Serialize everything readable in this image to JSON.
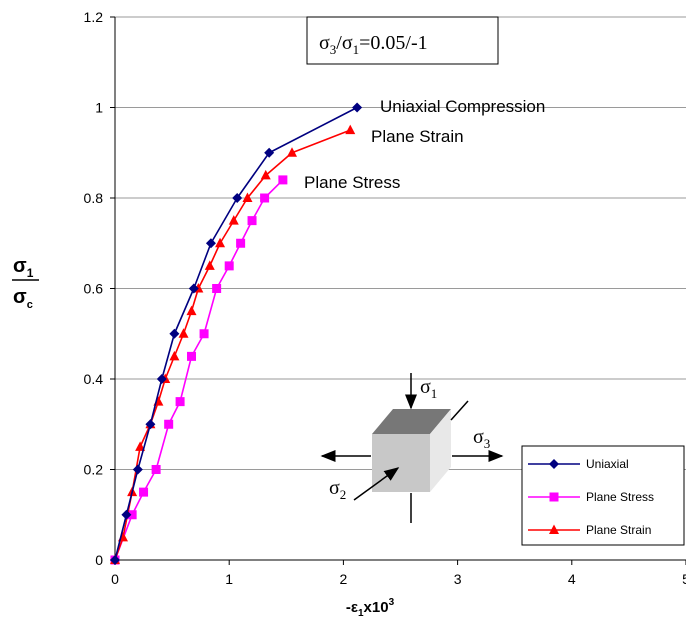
{
  "chart_data": {
    "type": "line",
    "xlabel": {
      "base": "-ε",
      "sub": "1",
      "mid": "x10",
      "sup": "3"
    },
    "ylabel": {
      "num_base": "σ",
      "num_sub": "1",
      "den_base": "σ",
      "den_sub": "c"
    },
    "xlim": [
      0,
      5
    ],
    "ylim": [
      0,
      1.2
    ],
    "x_ticks": [
      "0",
      "1",
      "2",
      "3",
      "4",
      "5"
    ],
    "y_ticks": [
      "0",
      "0.2",
      "0.4",
      "0.6",
      "0.8",
      "1",
      "1.2"
    ],
    "grid": "horizontal",
    "ratio_box": {
      "s3": "σ",
      "s3_sub": "3",
      "slash": "/",
      "s1": "σ",
      "s1_sub": "1",
      "value": "=0.05/-1"
    },
    "series": [
      {
        "name": "Uniaxial",
        "label": "Uniaxial Compression",
        "color": "#000080",
        "marker": "diamond",
        "x": [
          0,
          0.1,
          0.2,
          0.31,
          0.41,
          0.52,
          0.69,
          0.84,
          1.07,
          1.35,
          2.12
        ],
        "y": [
          0,
          0.1,
          0.2,
          0.3,
          0.4,
          0.5,
          0.6,
          0.7,
          0.8,
          0.9,
          1.0
        ]
      },
      {
        "name": "Plane Stress",
        "label": "Plane Stress",
        "color": "#ff00ff",
        "marker": "square",
        "x": [
          0,
          0.15,
          0.25,
          0.36,
          0.47,
          0.57,
          0.67,
          0.78,
          0.89,
          1.0,
          1.1,
          1.2,
          1.31,
          1.47
        ],
        "y": [
          0,
          0.1,
          0.15,
          0.2,
          0.3,
          0.35,
          0.45,
          0.5,
          0.6,
          0.65,
          0.7,
          0.75,
          0.8,
          0.84
        ]
      },
      {
        "name": "Plane Strain",
        "label": "Plane Strain",
        "color": "#ff0000",
        "marker": "triangle",
        "x": [
          0,
          0.07,
          0.15,
          0.22,
          0.31,
          0.38,
          0.44,
          0.52,
          0.6,
          0.67,
          0.73,
          0.83,
          0.92,
          1.04,
          1.16,
          1.32,
          1.55,
          2.06
        ],
        "y": [
          0,
          0.05,
          0.15,
          0.25,
          0.3,
          0.35,
          0.4,
          0.45,
          0.5,
          0.55,
          0.6,
          0.65,
          0.7,
          0.75,
          0.8,
          0.85,
          0.9,
          0.95
        ]
      }
    ],
    "diagram": {
      "s1": "σ",
      "s1_sub": "1",
      "s2": "σ",
      "s2_sub": "2",
      "s3": "σ",
      "s3_sub": "3"
    }
  }
}
